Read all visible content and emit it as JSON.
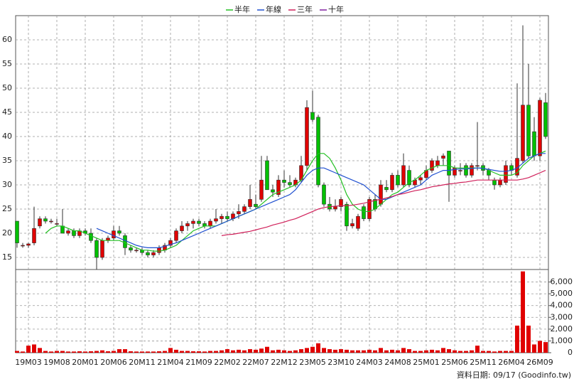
{
  "chart_data": {
    "type": "candlestick",
    "grid": true,
    "up_color": "#e00000",
    "down_color": "#00c000",
    "footnote": "資料日期: 09/17  (Goodinfo.tw)",
    "categories": [
      null,
      null,
      "19M03",
      null,
      null,
      null,
      null,
      "19M08",
      null,
      null,
      null,
      null,
      "20M01",
      null,
      null,
      null,
      null,
      "20M06",
      null,
      null,
      null,
      null,
      "20M11",
      null,
      null,
      null,
      null,
      "21M04",
      null,
      null,
      null,
      null,
      "21M09",
      null,
      null,
      null,
      null,
      "22M02",
      null,
      null,
      null,
      null,
      "22M07",
      null,
      null,
      null,
      null,
      "22M12",
      null,
      null,
      null,
      null,
      "23M05",
      null,
      null,
      null,
      null,
      "23M10",
      null,
      null,
      null,
      null,
      "24M03",
      null,
      null,
      null,
      null,
      "24M08",
      null,
      null,
      null,
      null,
      "25M01",
      null,
      null,
      null,
      null,
      "25M06",
      null,
      null,
      null,
      null,
      "25M11",
      null,
      null,
      null,
      null,
      "26M04",
      null,
      null,
      null,
      null,
      "26M09",
      null
    ],
    "open": [
      22.5,
      17.5,
      17.5,
      18,
      21.5,
      23,
      22.5,
      22,
      21.5,
      20,
      20.5,
      19.5,
      20.5,
      20,
      18.5,
      15,
      18.5,
      19,
      20.5,
      19.5,
      17,
      16.5,
      16.5,
      16,
      15.5,
      16,
      16.5,
      17.5,
      18.5,
      20.5,
      21.5,
      22,
      22.5,
      22,
      21.5,
      22.5,
      23,
      23.5,
      23,
      24,
      24.5,
      25.5,
      26,
      27,
      35,
      29,
      28,
      31,
      30.5,
      30,
      31,
      34,
      45,
      44,
      30,
      26,
      25,
      25.5,
      26,
      21.5,
      21,
      25.5,
      23,
      27,
      26,
      29.5,
      29,
      32,
      30,
      33,
      30,
      31,
      31.5,
      33,
      34,
      35.5,
      37,
      32,
      33,
      34,
      32,
      34,
      34,
      33,
      31,
      30,
      30.5,
      34,
      32,
      35,
      46.5,
      41,
      36,
      47
    ],
    "high": [
      22.5,
      18,
      18,
      25.5,
      23.5,
      23.5,
      23,
      23,
      25,
      21,
      21,
      21,
      21,
      21,
      19,
      19,
      19.5,
      21.5,
      21.5,
      20,
      17.5,
      17,
      17,
      16.5,
      16.5,
      17.5,
      18,
      19,
      21,
      22.5,
      22.5,
      23,
      23,
      22.5,
      23,
      25,
      24,
      24.5,
      24.5,
      26,
      26,
      30,
      28,
      36,
      36,
      30,
      32,
      33,
      32,
      31.5,
      36,
      47.5,
      49.5,
      44.5,
      30.5,
      27.5,
      27,
      27.5,
      26.5,
      23,
      24,
      26,
      27.5,
      28,
      31,
      31,
      32.5,
      33,
      36.5,
      34,
      31.5,
      32,
      34,
      35.5,
      36,
      36.5,
      37,
      34,
      34.5,
      34.5,
      34.5,
      43,
      34.5,
      33.5,
      31.5,
      31.5,
      35,
      34.5,
      51,
      63,
      55,
      44,
      48,
      49
    ],
    "low": [
      17,
      17,
      17,
      17.5,
      21,
      22,
      22,
      21.5,
      20.5,
      19.5,
      19,
      19,
      19.5,
      18,
      12.5,
      14.5,
      18,
      18.5,
      19.5,
      15.5,
      16,
      16,
      15.5,
      15,
      15,
      15.5,
      16,
      17,
      18,
      20,
      20.5,
      21,
      21.5,
      21,
      21,
      22,
      22,
      22.5,
      22.5,
      23,
      24,
      25,
      25,
      26.5,
      29,
      27.5,
      27.5,
      29.5,
      29.5,
      29.5,
      30.5,
      33,
      43,
      29.5,
      25.5,
      24.5,
      24.5,
      24.5,
      20.5,
      21,
      20.5,
      22.5,
      22.5,
      24.5,
      25.5,
      28.5,
      28.5,
      29.5,
      29.5,
      29.5,
      29.5,
      30,
      31,
      32.5,
      33.5,
      34,
      26.5,
      31.5,
      32,
      31.5,
      31.5,
      33,
      32,
      31,
      29,
      29.5,
      30,
      32,
      31.5,
      34.5,
      35.5,
      35,
      35,
      39.5
    ],
    "close": [
      18,
      17.5,
      17.8,
      21,
      23,
      22.5,
      22.5,
      22,
      20,
      20.5,
      19.5,
      20.5,
      20,
      18.5,
      15,
      18.5,
      19,
      20.5,
      20,
      17,
      16.5,
      16.5,
      16,
      15.5,
      16,
      17,
      17.5,
      18.5,
      20.5,
      21.5,
      22,
      22.5,
      22,
      21.5,
      22.5,
      23,
      23.5,
      23,
      24,
      24.5,
      25.5,
      27,
      25.5,
      31,
      29,
      28.5,
      31,
      30.5,
      30,
      31,
      34,
      46,
      43.5,
      30,
      26,
      25,
      25.5,
      27,
      21.5,
      22,
      23.5,
      23,
      27,
      25,
      30,
      29,
      32,
      30,
      34,
      30,
      31,
      31.5,
      33,
      35,
      35,
      36,
      32,
      33.5,
      33,
      32,
      34,
      34,
      33,
      32,
      30,
      31,
      34,
      33,
      35.5,
      46.5,
      36,
      36,
      47.5,
      40
    ],
    "ylim": [
      12.5,
      65
    ],
    "yticks": [
      15,
      20,
      25,
      30,
      35,
      40,
      45,
      50,
      55,
      60
    ],
    "series": [
      {
        "name": "半年",
        "color": "#22c022",
        "values": [
          null,
          null,
          null,
          null,
          null,
          20,
          21,
          21.5,
          21.5,
          21,
          20.5,
          20.5,
          20,
          19.5,
          19,
          18.5,
          18.5,
          18.5,
          18.5,
          18,
          17.5,
          17,
          16.5,
          16.5,
          16.3,
          16.3,
          16.5,
          17,
          17.5,
          18.5,
          19.5,
          20.5,
          21,
          21.5,
          21.5,
          21.5,
          22,
          22.5,
          23,
          23.5,
          24,
          24.5,
          25,
          26,
          27,
          28,
          28.5,
          29,
          29.5,
          30,
          31,
          33,
          35,
          36.5,
          36.5,
          35.5,
          33.5,
          31,
          28,
          26,
          25,
          24.5,
          24.5,
          25,
          26,
          27,
          28,
          28.5,
          29.5,
          30.5,
          31,
          32,
          33,
          33.5,
          34,
          34,
          34,
          33.5,
          33.5,
          33.5,
          33.5,
          33.5,
          33.5,
          33,
          32.5,
          32,
          32,
          32,
          32.5,
          34,
          35,
          36,
          36.5,
          37
        ]
      },
      {
        "name": "年線",
        "color": "#2050d0",
        "values": [
          null,
          null,
          null,
          null,
          null,
          null,
          null,
          null,
          null,
          null,
          null,
          null,
          null,
          null,
          21,
          20.5,
          20,
          19.5,
          19,
          18.5,
          18,
          17.5,
          17.2,
          17,
          17,
          17,
          17.3,
          17.7,
          18,
          18.5,
          19,
          19.5,
          20,
          20.5,
          21,
          21.5,
          22,
          22.5,
          23,
          23.5,
          24,
          24.5,
          25,
          25.5,
          26,
          26.5,
          27,
          27.5,
          28,
          29,
          30.5,
          32,
          33,
          33.5,
          33.5,
          33,
          32.5,
          32,
          31.5,
          31,
          30.5,
          30,
          29,
          28,
          27,
          27,
          27.5,
          28,
          28.5,
          29,
          29.5,
          30,
          31,
          32,
          32.5,
          33,
          33,
          33.2,
          33.3,
          33.3,
          33.4,
          33.5,
          33.4,
          33.2,
          33,
          32.8,
          32.8,
          33,
          33.5,
          34.5,
          35.5,
          36,
          36.5,
          36.5
        ]
      },
      {
        "name": "三年",
        "color": "#d0205a",
        "values": [
          null,
          null,
          null,
          null,
          null,
          null,
          null,
          null,
          null,
          null,
          null,
          null,
          null,
          null,
          null,
          null,
          null,
          null,
          null,
          null,
          null,
          null,
          null,
          null,
          null,
          null,
          null,
          null,
          null,
          null,
          null,
          null,
          null,
          null,
          null,
          null,
          19.5,
          19.7,
          19.8,
          20,
          20.2,
          20.4,
          20.7,
          21,
          21.3,
          21.7,
          22,
          22.3,
          22.7,
          23,
          23.5,
          24,
          24.5,
          25,
          25.3,
          25.5,
          25.6,
          25.7,
          25.7,
          25.8,
          26,
          26.2,
          26.5,
          26.8,
          27,
          27.3,
          27.6,
          28,
          28.2,
          28.5,
          28.8,
          29,
          29.3,
          29.6,
          29.8,
          30,
          30.2,
          30.3,
          30.5,
          30.6,
          30.8,
          31,
          31,
          31,
          31,
          31,
          31,
          31,
          31,
          31.2,
          31.5,
          32,
          32.5,
          33
        ]
      },
      {
        "name": "十年",
        "color": "#8020a0",
        "values": [
          null,
          null,
          null,
          null,
          null,
          null,
          null,
          null,
          null,
          null,
          null,
          null,
          null,
          null,
          null,
          null,
          null,
          null,
          null,
          null,
          null,
          null,
          null,
          null,
          null,
          null,
          null,
          null,
          null,
          null,
          null,
          null,
          null,
          null,
          null,
          null,
          null,
          null,
          null,
          null,
          null,
          null,
          null,
          null,
          null,
          null,
          null,
          null,
          null,
          null,
          null,
          null,
          null,
          null,
          null,
          null,
          null,
          null,
          null,
          null,
          null,
          null,
          null,
          null,
          null,
          null,
          null,
          null,
          null,
          null,
          null,
          null,
          null,
          null,
          null,
          null,
          null,
          null,
          null,
          null,
          null,
          null,
          null,
          null,
          null,
          null,
          null,
          null,
          null,
          null,
          null,
          null,
          null,
          null
        ]
      }
    ],
    "volume": {
      "color": "#e00000",
      "values": [
        150,
        100,
        600,
        700,
        400,
        150,
        100,
        150,
        150,
        100,
        100,
        120,
        100,
        120,
        150,
        200,
        120,
        150,
        300,
        300,
        120,
        100,
        100,
        100,
        100,
        120,
        150,
        400,
        250,
        150,
        150,
        120,
        120,
        100,
        150,
        150,
        200,
        300,
        200,
        250,
        200,
        300,
        250,
        350,
        500,
        200,
        250,
        200,
        150,
        200,
        300,
        400,
        500,
        800,
        400,
        300,
        250,
        300,
        250,
        200,
        200,
        200,
        250,
        200,
        400,
        200,
        250,
        200,
        400,
        300,
        150,
        150,
        200,
        250,
        200,
        400,
        300,
        200,
        150,
        150,
        200,
        600,
        150,
        150,
        100,
        150,
        150,
        150,
        2300,
        6900,
        2300,
        700,
        1000,
        900
      ],
      "ylim": [
        0,
        7000
      ],
      "yticks": [
        0,
        {
          "value": 1000,
          "label": "1,000"
        },
        {
          "value": 2000,
          "label": "2,000"
        },
        {
          "value": 3000,
          "label": "3,000"
        },
        {
          "value": 4000,
          "label": "4,000"
        },
        {
          "value": 5000,
          "label": "5,000"
        },
        {
          "value": 6000,
          "label": "6,000"
        }
      ]
    }
  }
}
